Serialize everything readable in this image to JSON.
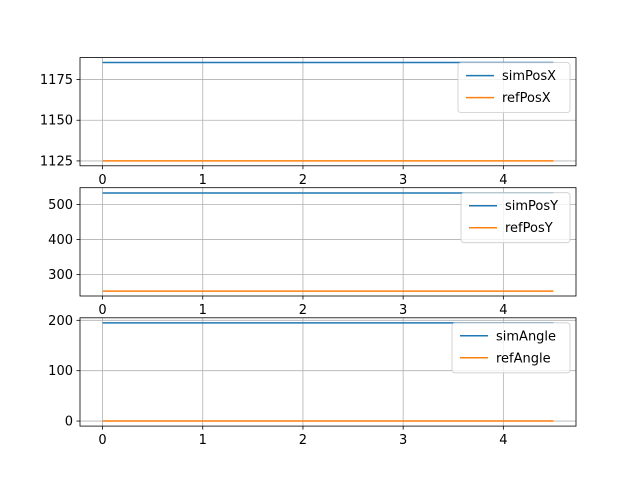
{
  "figure": {
    "background": "#ffffff"
  },
  "chart_data": [
    {
      "type": "line",
      "x": [
        0,
        4.5
      ],
      "xlim": [
        -0.225,
        4.725
      ],
      "xticks": [
        0,
        1,
        2,
        3,
        4
      ],
      "xticklabels": [
        "0",
        "1",
        "2",
        "3",
        "4"
      ],
      "ylim": [
        1122.0,
        1188.5
      ],
      "yticks": [
        1125,
        1150,
        1175
      ],
      "yticklabels": [
        "1125",
        "1150",
        "1175"
      ],
      "grid": true,
      "legend": "upper-right",
      "series": [
        {
          "name": "simPosX",
          "color": "#1f77b4",
          "values": [
            1185.5,
            1185.5
          ]
        },
        {
          "name": "refPosX",
          "color": "#ff7f0e",
          "values": [
            1125.0,
            1125.0
          ]
        }
      ]
    },
    {
      "type": "line",
      "x": [
        0,
        4.5
      ],
      "xlim": [
        -0.225,
        4.725
      ],
      "xticks": [
        0,
        1,
        2,
        3,
        4
      ],
      "xticklabels": [
        "0",
        "1",
        "2",
        "3",
        "4"
      ],
      "ylim": [
        239,
        548
      ],
      "yticks": [
        300,
        400,
        500
      ],
      "yticklabels": [
        "300",
        "400",
        "500"
      ],
      "grid": true,
      "legend": "upper-right",
      "series": [
        {
          "name": "simPosY",
          "color": "#1f77b4",
          "values": [
            533,
            533
          ]
        },
        {
          "name": "refPosY",
          "color": "#ff7f0e",
          "values": [
            253,
            253
          ]
        }
      ]
    },
    {
      "type": "line",
      "x": [
        0,
        4.5
      ],
      "xlim": [
        -0.225,
        4.725
      ],
      "xticks": [
        0,
        1,
        2,
        3,
        4
      ],
      "xticklabels": [
        "0",
        "1",
        "2",
        "3",
        "4"
      ],
      "ylim": [
        -10,
        205
      ],
      "yticks": [
        0,
        100,
        200
      ],
      "yticklabels": [
        "0",
        "100",
        "200"
      ],
      "grid": true,
      "legend": "upper-right",
      "series": [
        {
          "name": "simAngle",
          "color": "#1f77b4",
          "values": [
            195,
            195
          ]
        },
        {
          "name": "refAngle",
          "color": "#ff7f0e",
          "values": [
            0,
            0
          ]
        }
      ]
    }
  ]
}
